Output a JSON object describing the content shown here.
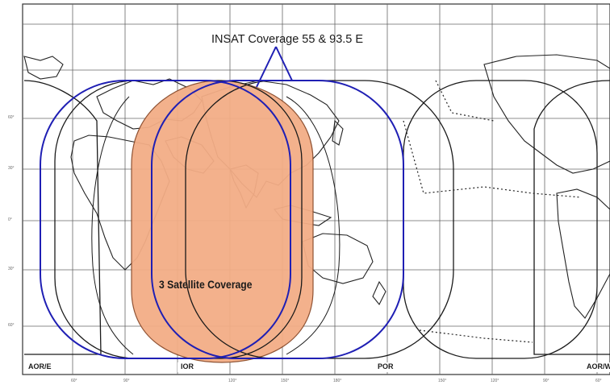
{
  "title": "INSAT Coverage 55 & 93.5 E",
  "center_label": "3 Satellite Coverage",
  "regions": [
    {
      "name": "AOR/E"
    },
    {
      "name": "IOR"
    },
    {
      "name": "POR"
    },
    {
      "name": "AOR/W"
    }
  ],
  "lat_labels": [
    "60°",
    "30°",
    "0°",
    "30°",
    "60°"
  ],
  "lon_labels": [
    "60°",
    "90°",
    "120°",
    "150°",
    "180°",
    "150°",
    "120°",
    "90°",
    "60°"
  ],
  "colors": {
    "overlap_fill": "#f3ad86",
    "insat_outline": "#1f1fb4",
    "footprint_outline": "#1a1a1a",
    "grid": "#555555"
  }
}
